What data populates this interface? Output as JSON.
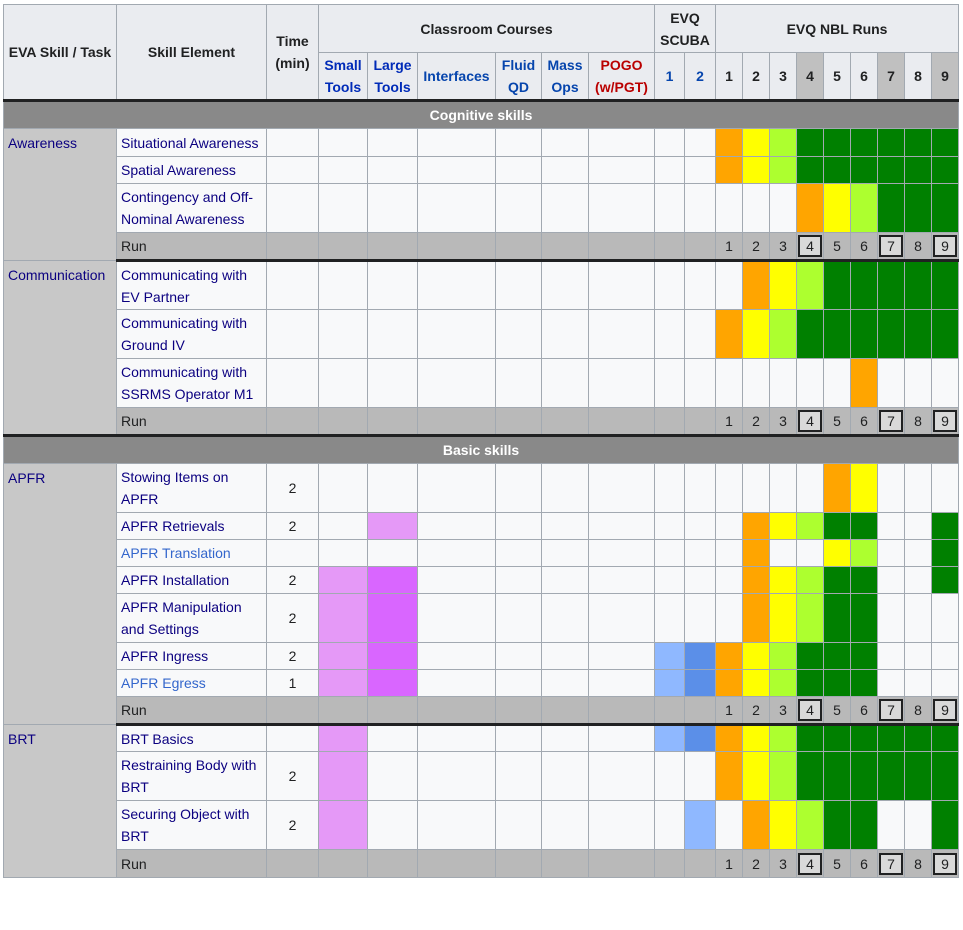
{
  "header": {
    "eva_skill_task": "EVA Skill / Task",
    "skill_element": "Skill Element",
    "time_min": "Time (min)",
    "classroom_courses": "Classroom Courses",
    "evq_scuba": "EVQ SCUBA",
    "evq_nbl_runs": "EVQ NBL Runs",
    "courses": [
      "Small Tools",
      "Large Tools",
      "Interfaces",
      "Fluid QD",
      "Mass Ops",
      "POGO (w/PGT)"
    ],
    "scuba_runs": [
      "1",
      "2"
    ],
    "nbl_runs": [
      "1",
      "2",
      "3",
      "4",
      "5",
      "6",
      "7",
      "8",
      "9"
    ]
  },
  "sections": [
    {
      "title": "Cognitive skills"
    },
    {
      "title": "Basic skills"
    }
  ],
  "groups": [
    {
      "skill": "Awareness",
      "rows": [
        {
          "element": "Situational Awareness",
          "time": ""
        },
        {
          "element": "Spatial Awareness",
          "time": ""
        },
        {
          "element": "Contingency and Off-Nominal Awareness",
          "time": ""
        }
      ],
      "run_label": "Run",
      "run_numbers": [
        "1",
        "2",
        "3",
        "4",
        "5",
        "6",
        "7",
        "8",
        "9"
      ]
    },
    {
      "skill": "Communication",
      "rows": [
        {
          "element": "Communicating with EV Partner",
          "time": ""
        },
        {
          "element": "Communicating with Ground IV",
          "time": ""
        },
        {
          "element": "Communicating with SSRMS Operator M1",
          "time": ""
        }
      ],
      "run_label": "Run",
      "run_numbers": [
        "1",
        "2",
        "3",
        "4",
        "5",
        "6",
        "7",
        "8",
        "9"
      ]
    },
    {
      "skill": "APFR",
      "rows": [
        {
          "element": "Stowing Items on APFR",
          "time": "2"
        },
        {
          "element": "APFR Retrievals",
          "time": "2"
        },
        {
          "element": "APFR Translation",
          "time": ""
        },
        {
          "element": "APFR Installation",
          "time": "2"
        },
        {
          "element": "APFR Manipulation and Settings",
          "time": "2"
        },
        {
          "element": "APFR Ingress",
          "time": "2"
        },
        {
          "element": "APFR Egress",
          "time": "1"
        }
      ],
      "run_label": "Run",
      "run_numbers": [
        "1",
        "2",
        "3",
        "4",
        "5",
        "6",
        "7",
        "8",
        "9"
      ]
    },
    {
      "skill": "BRT",
      "rows": [
        {
          "element": "BRT Basics",
          "time": ""
        },
        {
          "element": "Restraining Body with BRT",
          "time": "2"
        },
        {
          "element": "Securing Object with BRT",
          "time": "2"
        }
      ],
      "run_label": "Run",
      "run_numbers": [
        "1",
        "2",
        "3",
        "4",
        "5",
        "6",
        "7",
        "8",
        "9"
      ]
    }
  ],
  "legend_colors": {
    "orange": "#ffa500",
    "yellow": "#ffff00",
    "lime": "#adff2f",
    "green": "#008000",
    "small_tools_pink": "#e599f7",
    "large_tools_magenta": "#d966ff",
    "scuba1_light_blue": "#8fb8ff",
    "scuba2_blue": "#5b8fe8"
  }
}
